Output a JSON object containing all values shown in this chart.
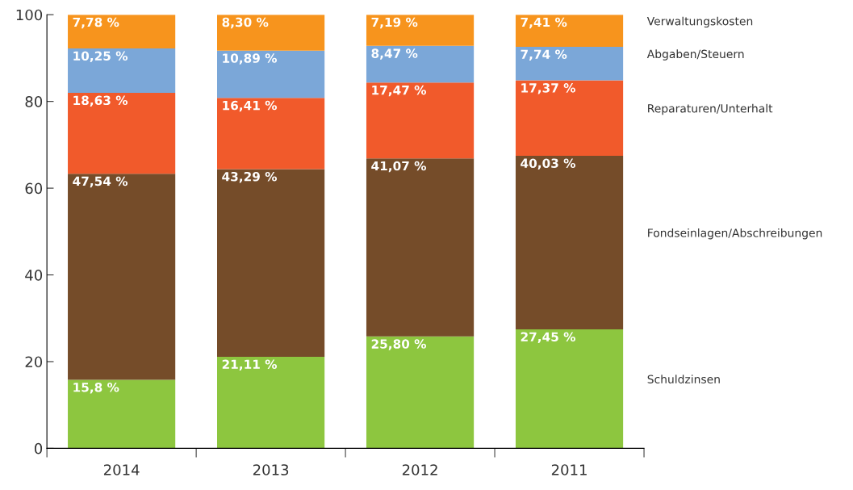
{
  "chart_data": {
    "type": "bar",
    "stacked": true,
    "categories": [
      "2014",
      "2013",
      "2012",
      "2011"
    ],
    "series": [
      {
        "name": "Schuldzinsen",
        "color": "#8dc63f",
        "values": [
          15.8,
          21.11,
          25.8,
          27.45
        ],
        "value_labels": [
          "15,8 %",
          "21,11 %",
          "25,80 %",
          "27,45 %"
        ]
      },
      {
        "name": "Fondseinlagen/Abschreibungen",
        "color": "#754c29",
        "values": [
          47.54,
          43.29,
          41.07,
          40.03
        ],
        "value_labels": [
          "47,54 %",
          "43,29 %",
          "41,07 %",
          "40,03 %"
        ]
      },
      {
        "name": "Reparaturen/Unterhalt",
        "color": "#f15a2b",
        "values": [
          18.63,
          16.41,
          17.47,
          17.37
        ],
        "value_labels": [
          "18,63 %",
          "16,41 %",
          "17,47 %",
          "17,37 %"
        ]
      },
      {
        "name": "Abgaben/Steuern",
        "color": "#7ba7d8",
        "values": [
          10.25,
          10.89,
          8.47,
          7.74
        ],
        "value_labels": [
          "10,25 %",
          "10,89 %",
          "8,47 %",
          "7,74 %"
        ]
      },
      {
        "name": "Verwaltungskosten",
        "color": "#f7941d",
        "values": [
          7.78,
          8.3,
          7.19,
          7.41
        ],
        "value_labels": [
          "7,78 %",
          "8,30 %",
          "7,19 %",
          "7,41 %"
        ]
      }
    ],
    "ylim": [
      0,
      100
    ],
    "yticks": [
      0,
      20,
      40,
      60,
      80,
      100
    ],
    "grid": false,
    "legend": false
  }
}
